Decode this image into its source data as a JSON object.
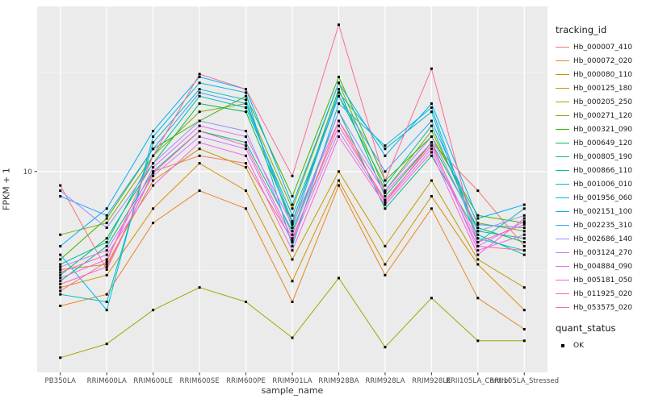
{
  "figure": {
    "background": "#FFFFFF",
    "panel_background": "#EBEBEB",
    "grid_major_color": "#FFFFFF",
    "grid_minor_color": "#F7F7F7",
    "point_color": "#000000",
    "tick_color": "#333333",
    "tick_label_color": "#4D4D4D"
  },
  "axes": {
    "y_label": "FPKM + 1",
    "x_label": "sample_name"
  },
  "legends": {
    "tracking": {
      "title": "tracking_id"
    },
    "quant": {
      "title": "quant_status",
      "items": [
        {
          "label": "OK"
        }
      ]
    }
  },
  "chart_data": {
    "type": "line",
    "title": "",
    "xlabel": "sample_name",
    "ylabel": "FPKM + 1",
    "y_scale": "log10",
    "y_ticks": [
      10
    ],
    "ylim": [
      0.97,
      68
    ],
    "grid": true,
    "legend_position": "right",
    "marker": "black-square",
    "categories": [
      "PB350LA",
      "RRIM600LA",
      "RRIM600LE",
      "RRIM600SE",
      "RRIM600PE",
      "RRIM901LA",
      "RRIM928BA",
      "RRIM928LA",
      "RRIM928LE",
      "RRII105LA_Control",
      "RRII105LA_Stressed"
    ],
    "series": [
      {
        "name": "Hb_000007_410",
        "color": "#F8766D",
        "values": [
          8.5,
          3.2,
          10,
          12,
          11,
          4.5,
          18,
          7,
          14,
          8,
          4.2
        ]
      },
      {
        "name": "Hb_000072_020",
        "color": "#E88526",
        "values": [
          2.1,
          2.4,
          5.5,
          8,
          6.5,
          2.2,
          8.5,
          3.0,
          6.5,
          2.3,
          1.6
        ]
      },
      {
        "name": "Hb_000080_110",
        "color": "#D89000",
        "values": [
          2.6,
          3.0,
          6.5,
          11,
          8,
          2.8,
          9,
          3.4,
          7.5,
          3.4,
          2.0
        ]
      },
      {
        "name": "Hb_000125_180",
        "color": "#C09B00",
        "values": [
          3.2,
          3.4,
          9,
          13,
          10.5,
          3.6,
          10,
          4.2,
          9,
          3.6,
          2.6
        ]
      },
      {
        "name": "Hb_000205_250",
        "color": "#A3A500",
        "values": [
          1.15,
          1.35,
          2.0,
          2.6,
          2.2,
          1.45,
          2.9,
          1.3,
          2.3,
          1.4,
          1.4
        ]
      },
      {
        "name": "Hb_000271_120",
        "color": "#7CAE00",
        "values": [
          4.8,
          5.5,
          12,
          20,
          22,
          6.5,
          28,
          8,
          16,
          5.5,
          5.0
        ]
      },
      {
        "name": "Hb_000321_090",
        "color": "#39B600",
        "values": [
          3.6,
          5.8,
          13,
          18,
          24,
          7.5,
          30,
          9,
          15,
          6,
          5.5
        ]
      },
      {
        "name": "Hb_000649_120",
        "color": "#00BB4E",
        "values": [
          3.0,
          4.6,
          11,
          22,
          20,
          5.5,
          26,
          7.5,
          14,
          5.2,
          4.4
        ]
      },
      {
        "name": "Hb_000805_190",
        "color": "#00BF7D",
        "values": [
          2.8,
          4.2,
          10,
          16,
          14,
          5.0,
          20,
          6.5,
          12,
          4.8,
          3.8
        ]
      },
      {
        "name": "Hb_000866_110",
        "color": "#00C1A3",
        "values": [
          3.4,
          4.4,
          12,
          24,
          21,
          6.0,
          24,
          8.5,
          17,
          5.0,
          4.6
        ]
      },
      {
        "name": "Hb_001006_010",
        "color": "#00BFC4",
        "values": [
          2.4,
          2.2,
          14,
          26,
          23,
          5.2,
          25,
          13,
          20,
          4.4,
          6.5
        ]
      },
      {
        "name": "Hb_001956_060",
        "color": "#00BAE0",
        "values": [
          3.8,
          2.0,
          15,
          28,
          25,
          4.2,
          22,
          13.5,
          21,
          4.6,
          4.0
        ]
      },
      {
        "name": "Hb_002151_100",
        "color": "#00B0F6",
        "values": [
          4.2,
          6.5,
          16,
          30,
          26,
          6.8,
          28,
          12,
          22,
          5.8,
          6.8
        ]
      },
      {
        "name": "Hb_002235_310",
        "color": "#35A2FF",
        "values": [
          7.5,
          6.0,
          13,
          25,
          22,
          5.6,
          24,
          10,
          18,
          5.4,
          5.2
        ]
      },
      {
        "name": "Hb_002686_140",
        "color": "#9590FF",
        "values": [
          8.0,
          5.2,
          11,
          18,
          16,
          4.8,
          20,
          8,
          15,
          5.0,
          6.0
        ]
      },
      {
        "name": "Hb_003124_270",
        "color": "#C77CFF",
        "values": [
          3.3,
          4.0,
          9.5,
          15,
          13,
          4.4,
          16,
          7,
          13,
          4.2,
          5.6
        ]
      },
      {
        "name": "Hb_004884_090",
        "color": "#E76BF3",
        "values": [
          2.9,
          3.6,
          10.5,
          17,
          15,
          5.4,
          18,
          7.8,
          14,
          4.0,
          4.8
        ]
      },
      {
        "name": "Hb_005181_050",
        "color": "#FA62DB",
        "values": [
          3.1,
          3.8,
          8.5,
          14,
          12,
          4.0,
          15,
          6.8,
          12.5,
          3.8,
          5.8
        ]
      },
      {
        "name": "Hb_011925_020",
        "color": "#FF62BC",
        "values": [
          2.7,
          3.3,
          9.8,
          16,
          13.5,
          4.6,
          17,
          7.2,
          13.5,
          4.4,
          5.4
        ]
      },
      {
        "name": "Hb_053575_020",
        "color": "#FF6A98",
        "values": [
          2.5,
          3.5,
          12,
          31,
          26,
          9.5,
          55,
          9.0,
          33,
          4.2,
          4.0
        ]
      }
    ]
  }
}
